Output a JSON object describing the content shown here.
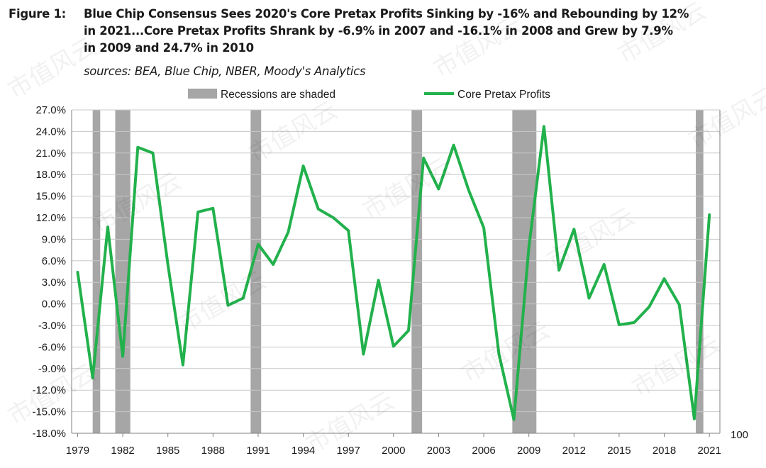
{
  "figure": {
    "label": "Figure 1:",
    "title_lines": [
      "Blue Chip Consensus Sees 2020's Core Pretax Profits Sinking by -16% and Rebounding by 12%",
      "in 2021...Core Pretax Profits Shrank by -6.9% in 2007 and -16.1% in 2008 and Grew by 7.9%",
      "in 2009 and 24.7% in 2010"
    ],
    "sources": "sources: BEA, Blue Chip, NBER, Moody's Analytics"
  },
  "watermark": "市值风云",
  "colors": {
    "line": "#22b14c",
    "recession": "#a6a6a6",
    "grid": "#c8c8c8",
    "axis": "#808080"
  },
  "chart_data": {
    "type": "line",
    "title": "Blue Chip Consensus Sees 2020's Core Pretax Profits Sinking by -16% and Rebounding by 12% in 2021...Core Pretax Profits Shrank by -6.9% in 2007 and -16.1% in 2008 and Grew by 7.9% in 2009 and 24.7% in 2010",
    "legend_position": "top",
    "legend": [
      {
        "label": "Recessions are shaded",
        "kind": "shade"
      },
      {
        "label": "Core Pretax Profits",
        "kind": "line"
      }
    ],
    "x": [
      1979,
      1980,
      1981,
      1982,
      1983,
      1984,
      1985,
      1986,
      1987,
      1988,
      1989,
      1990,
      1991,
      1992,
      1993,
      1994,
      1995,
      1996,
      1997,
      1998,
      1999,
      2000,
      2001,
      2002,
      2003,
      2004,
      2005,
      2006,
      2007,
      2008,
      2009,
      2010,
      2011,
      2012,
      2013,
      2014,
      2015,
      2016,
      2017,
      2018,
      2019,
      2020,
      2021
    ],
    "series": [
      {
        "name": "Core Pretax Profits",
        "values": [
          4.4,
          -10.3,
          10.7,
          -7.3,
          21.8,
          21.0,
          5.5,
          -8.5,
          12.8,
          13.3,
          -0.2,
          0.8,
          8.3,
          5.5,
          10.0,
          19.2,
          13.2,
          12.0,
          10.2,
          -7.0,
          3.3,
          -5.9,
          -3.7,
          20.3,
          16.0,
          22.1,
          15.8,
          10.6,
          -6.9,
          -16.1,
          7.9,
          24.7,
          4.7,
          10.4,
          0.8,
          5.5,
          -2.9,
          -2.6,
          -0.4,
          3.5,
          -0.1,
          -16.0,
          12.4
        ]
      }
    ],
    "recessions": [
      [
        1980.0,
        1980.5
      ],
      [
        1981.5,
        1982.5
      ],
      [
        1990.5,
        1991.2
      ],
      [
        2001.2,
        2001.9
      ],
      [
        2007.9,
        2009.5
      ],
      [
        2020.1,
        2020.6
      ]
    ],
    "ylim": [
      -18,
      27
    ],
    "y_ticks": [
      "-18.0%",
      "-15.0%",
      "-12.0%",
      "-9.0%",
      "-6.0%",
      "-3.0%",
      "0.0%",
      "3.0%",
      "6.0%",
      "9.0%",
      "12.0%",
      "15.0%",
      "18.0%",
      "21.0%",
      "24.0%",
      "27.0%"
    ],
    "x_ticks": [
      1979,
      1982,
      1985,
      1988,
      1991,
      1994,
      1997,
      2000,
      2003,
      2006,
      2009,
      2012,
      2015,
      2018,
      2021
    ],
    "right_axis_label": "100",
    "grid": true,
    "xlabel": "",
    "ylabel": ""
  }
}
